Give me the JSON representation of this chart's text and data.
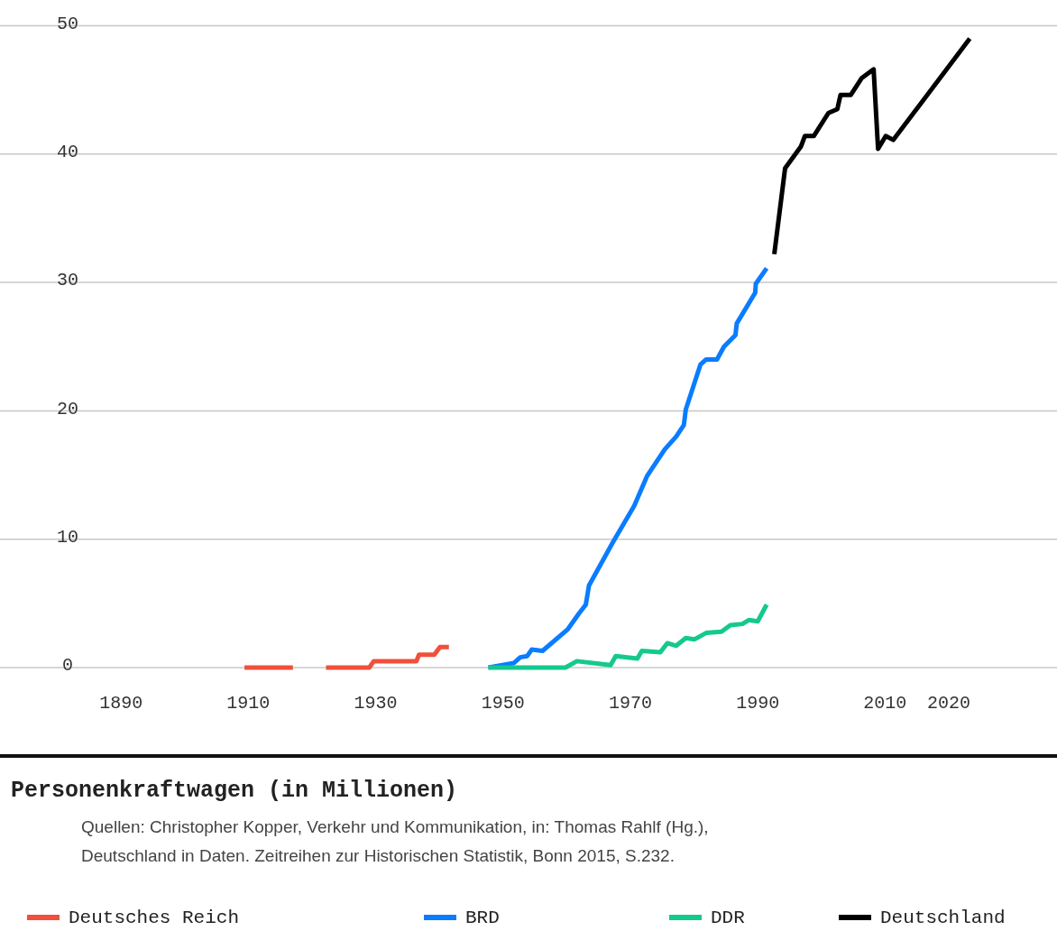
{
  "chart_data": {
    "type": "line",
    "title": "Personenkraftwagen (in Millionen)",
    "annotations": [
      "Quellen: Christopher Kopper, Verkehr und Kommunikation, in: Thomas Rahlf (Hg.),",
      "Deutschland in Daten. Zeitreihen zur Historischen Statistik, Bonn 2015, S.232."
    ],
    "xlim": [
      1871,
      2037
    ],
    "xticks": [
      1890,
      1910,
      1930,
      1950,
      1970,
      1990,
      2010,
      2020
    ],
    "ylim": [
      0,
      52
    ],
    "yticks": [
      0,
      10,
      20,
      30,
      40,
      50
    ],
    "grid": "y",
    "legend": "bottom",
    "marker": "none",
    "line_style": "solid",
    "tick_labels": "xy",
    "series": [
      {
        "name": "Deutsches Reich",
        "color": "#f0503c",
        "x": [
          1909.4,
          1913,
          1917,
          1920,
          1922.2,
          1926,
          1929,
          1929.7,
          1933,
          1936.4,
          1936.8,
          1939.2,
          1940.1,
          1941.5
        ],
        "values": [
          0,
          0,
          0,
          null,
          0,
          0,
          0,
          0.5,
          0.5,
          0.5,
          1.0,
          1.0,
          1.6,
          1.6
        ]
      },
      {
        "name": "BRD",
        "color": "#0a7cff",
        "x": [
          1947.7,
          1951.7,
          1952.7,
          1953.8,
          1954.5,
          1956.2,
          1960.2,
          1961.9,
          1963,
          1963.5,
          1967.3,
          1970.6,
          1972.6,
          1975.4,
          1977.2,
          1978.4,
          1978.7,
          1981,
          1981.9,
          1983.6,
          1984.7,
          1986.5,
          1986.7,
          1989.6,
          1989.7,
          1991.4
        ],
        "values": [
          0,
          0.35,
          0.8,
          0.9,
          1.4,
          1.3,
          3.0,
          4.2,
          4.9,
          6.4,
          9.8,
          12.6,
          14.9,
          17.0,
          18.0,
          18.9,
          20.1,
          23.6,
          24.0,
          24.0,
          25.0,
          25.9,
          26.8,
          29.2,
          29.9,
          31.1
        ]
      },
      {
        "name": "DDR",
        "color": "#14c98c",
        "x": [
          1947.7,
          1959.8,
          1961.6,
          1966.9,
          1967.7,
          1971.1,
          1971.8,
          1974.7,
          1975.8,
          1977.2,
          1978.7,
          1980.1,
          1981.9,
          1984.3,
          1985.7,
          1987.6,
          1988.6,
          1990,
          1991.4
        ],
        "values": [
          0,
          0,
          0.5,
          0.2,
          0.9,
          0.7,
          1.3,
          1.2,
          1.9,
          1.7,
          2.3,
          2.2,
          2.7,
          2.8,
          3.3,
          3.4,
          3.7,
          3.6,
          4.9
        ]
      },
      {
        "name": "Deutschland",
        "color": "#000000",
        "x": [
          1992.6,
          1994.3,
          1996.8,
          1997.4,
          1998.8,
          2001.1,
          2002.5,
          2003,
          2004.6,
          2006.3,
          2008.2,
          2008.9,
          2010.1,
          2011.3,
          2023.3
        ],
        "values": [
          32.2,
          38.9,
          40.6,
          41.4,
          41.4,
          43.2,
          43.5,
          44.6,
          44.6,
          45.9,
          46.6,
          40.4,
          41.4,
          41.1,
          49.0
        ]
      }
    ]
  }
}
